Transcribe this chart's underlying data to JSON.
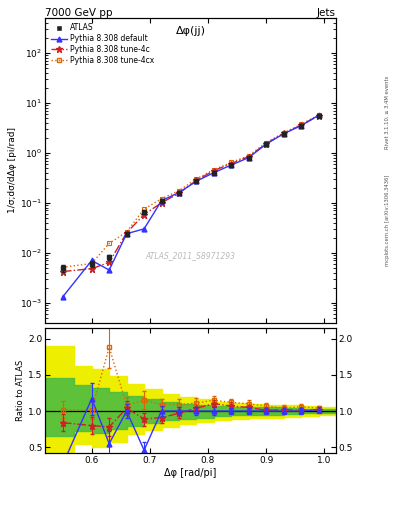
{
  "title_top": "7000 GeV pp",
  "title_right": "Jets",
  "plot_title": "Δφ(jj)",
  "watermark": "ATLAS_2011_S8971293",
  "right_label_top": "Rivet 3.1.10, ≥ 3.4M events",
  "right_label_bot": "mcplots.cern.ch [arXiv:1306.3436]",
  "ylabel_main": "1/σ;dσ/dΔφ [pi/rad]",
  "ylabel_ratio": "Ratio to ATLAS",
  "xlabel": "Δφ [rad/pi]",
  "xlim": [
    0.52,
    1.02
  ],
  "ylim_main": [
    0.0004,
    500.0
  ],
  "ylim_ratio": [
    0.42,
    2.15
  ],
  "atlas_x": [
    0.55,
    0.6,
    0.63,
    0.66,
    0.69,
    0.72,
    0.75,
    0.78,
    0.81,
    0.84,
    0.87,
    0.9,
    0.93,
    0.96,
    0.99
  ],
  "atlas_y": [
    0.005,
    0.006,
    0.0082,
    0.024,
    0.065,
    0.11,
    0.16,
    0.27,
    0.4,
    0.57,
    0.8,
    1.5,
    2.4,
    3.5,
    5.5
  ],
  "atlas_yerr": [
    0.0008,
    0.0008,
    0.001,
    0.002,
    0.005,
    0.008,
    0.012,
    0.018,
    0.025,
    0.04,
    0.06,
    0.09,
    0.15,
    0.22,
    0.35
  ],
  "py_default_x": [
    0.55,
    0.6,
    0.63,
    0.66,
    0.69,
    0.72,
    0.75,
    0.78,
    0.81,
    0.84,
    0.87,
    0.9,
    0.93,
    0.96,
    0.99
  ],
  "py_default_y": [
    0.0013,
    0.007,
    0.0045,
    0.024,
    0.03,
    0.11,
    0.16,
    0.27,
    0.4,
    0.57,
    0.8,
    1.5,
    2.4,
    3.5,
    5.6
  ],
  "py_4c_x": [
    0.55,
    0.6,
    0.63,
    0.66,
    0.69,
    0.72,
    0.75,
    0.78,
    0.81,
    0.84,
    0.87,
    0.9,
    0.93,
    0.96,
    0.99
  ],
  "py_4c_y": [
    0.0042,
    0.0048,
    0.0064,
    0.025,
    0.058,
    0.1,
    0.155,
    0.28,
    0.44,
    0.61,
    0.84,
    1.52,
    2.45,
    3.55,
    5.55
  ],
  "py_4cx_x": [
    0.55,
    0.6,
    0.63,
    0.66,
    0.69,
    0.72,
    0.75,
    0.78,
    0.81,
    0.84,
    0.87,
    0.9,
    0.93,
    0.96,
    0.99
  ],
  "py_4cx_y": [
    0.0051,
    0.0061,
    0.0154,
    0.026,
    0.075,
    0.12,
    0.175,
    0.3,
    0.46,
    0.64,
    0.88,
    1.6,
    2.5,
    3.7,
    5.7
  ],
  "ratio_default_y": [
    0.26,
    1.17,
    0.55,
    1.0,
    0.46,
    1.0,
    1.0,
    1.0,
    1.0,
    1.0,
    1.0,
    1.0,
    1.0,
    1.0,
    1.02
  ],
  "ratio_default_yerr": [
    0.1,
    0.22,
    0.18,
    0.1,
    0.12,
    0.07,
    0.06,
    0.05,
    0.05,
    0.04,
    0.04,
    0.04,
    0.04,
    0.04,
    0.03
  ],
  "ratio_4c_y": [
    0.84,
    0.8,
    0.78,
    1.04,
    0.89,
    0.91,
    0.97,
    1.04,
    1.1,
    1.07,
    1.05,
    1.01,
    1.02,
    1.01,
    1.01
  ],
  "ratio_4c_yerr": [
    0.12,
    0.12,
    0.13,
    0.1,
    0.09,
    0.07,
    0.06,
    0.05,
    0.05,
    0.05,
    0.04,
    0.04,
    0.04,
    0.04,
    0.03
  ],
  "ratio_4cx_y": [
    1.02,
    1.01,
    1.88,
    1.08,
    1.15,
    1.09,
    1.09,
    1.11,
    1.15,
    1.12,
    1.1,
    1.07,
    1.04,
    1.06,
    1.04
  ],
  "ratio_4cx_yerr": [
    0.12,
    0.12,
    0.28,
    0.11,
    0.12,
    0.08,
    0.07,
    0.07,
    0.06,
    0.05,
    0.05,
    0.04,
    0.04,
    0.04,
    0.03
  ],
  "yellow_band_x": [
    0.52,
    0.57,
    0.6,
    0.63,
    0.66,
    0.69,
    0.72,
    0.75,
    0.78,
    0.81,
    0.84,
    0.87,
    0.9,
    0.93,
    0.96,
    0.99,
    1.02
  ],
  "yellow_band_low": [
    0.42,
    0.42,
    0.55,
    0.5,
    0.58,
    0.68,
    0.74,
    0.78,
    0.82,
    0.85,
    0.87,
    0.89,
    0.9,
    0.91,
    0.92,
    0.93,
    0.94
  ],
  "yellow_band_high": [
    1.9,
    1.9,
    1.62,
    1.58,
    1.48,
    1.38,
    1.3,
    1.24,
    1.19,
    1.16,
    1.13,
    1.11,
    1.1,
    1.09,
    1.08,
    1.07,
    1.06
  ],
  "green_band_x": [
    0.52,
    0.57,
    0.6,
    0.63,
    0.66,
    0.69,
    0.72,
    0.75,
    0.78,
    0.81,
    0.84,
    0.87,
    0.9,
    0.93,
    0.96,
    0.99,
    1.02
  ],
  "green_band_low": [
    0.65,
    0.65,
    0.72,
    0.7,
    0.75,
    0.8,
    0.84,
    0.87,
    0.89,
    0.91,
    0.93,
    0.94,
    0.95,
    0.95,
    0.96,
    0.97,
    0.97
  ],
  "green_band_high": [
    1.45,
    1.45,
    1.36,
    1.32,
    1.26,
    1.21,
    1.16,
    1.12,
    1.1,
    1.08,
    1.07,
    1.06,
    1.05,
    1.05,
    1.04,
    1.03,
    1.03
  ],
  "color_atlas": "#222222",
  "color_default": "#3333ff",
  "color_4c": "#cc2222",
  "color_4cx": "#dd6600",
  "color_yellow": "#eeee00",
  "color_green": "#44bb44",
  "bg_color": "#ffffff"
}
